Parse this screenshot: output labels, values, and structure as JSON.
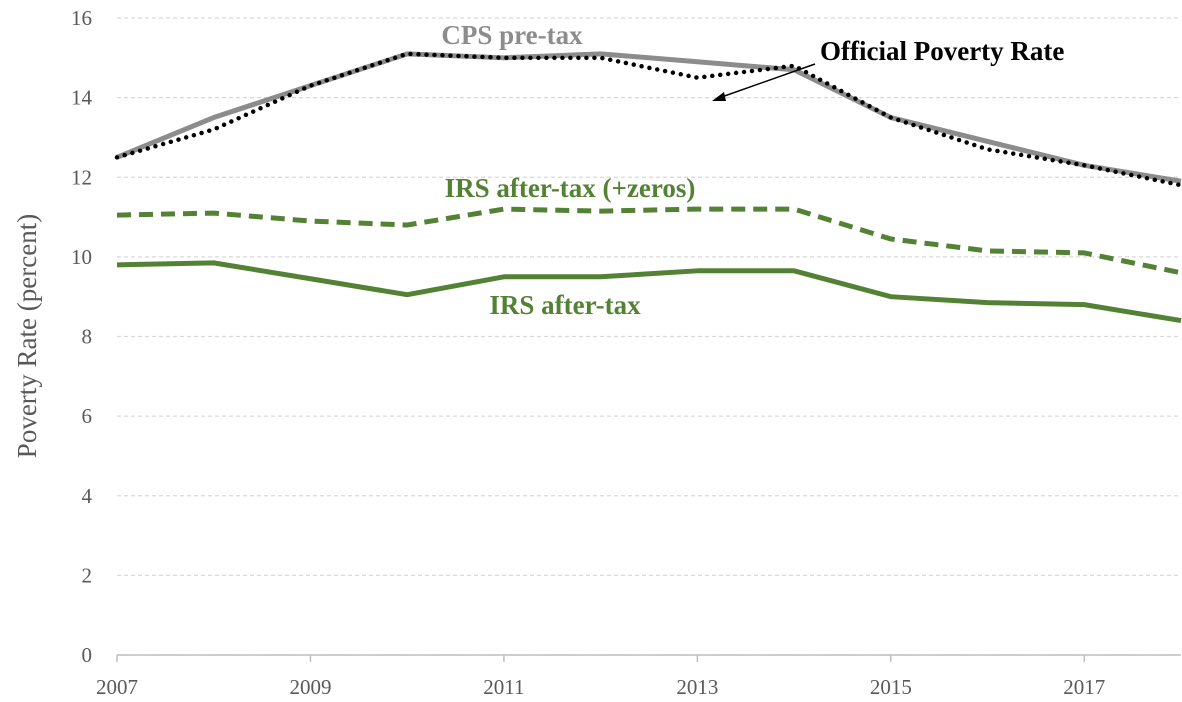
{
  "chart_data": {
    "type": "line",
    "y_label": "Poverty Rate (percent)",
    "x": [
      2007,
      2008,
      2009,
      2010,
      2011,
      2012,
      2013,
      2014,
      2015,
      2016,
      2017,
      2018
    ],
    "series": [
      {
        "name": "CPS pre-tax",
        "color": "#8c8c8c",
        "dash": "solid",
        "values": [
          12.5,
          13.5,
          14.3,
          15.1,
          15.0,
          15.1,
          14.9,
          14.7,
          13.5,
          12.9,
          12.3,
          11.9
        ]
      },
      {
        "name": "Official Poverty Rate",
        "color": "#000000",
        "dash": "dotted",
        "values": [
          12.5,
          13.2,
          14.3,
          15.1,
          15.0,
          15.0,
          14.5,
          14.8,
          13.5,
          12.7,
          12.3,
          11.8
        ]
      },
      {
        "name": "IRS after-tax (+zeros)",
        "color": "#548235",
        "dash": "dashed",
        "values": [
          11.05,
          11.1,
          10.9,
          10.8,
          11.2,
          11.15,
          11.2,
          11.2,
          10.45,
          10.15,
          10.1,
          9.6
        ]
      },
      {
        "name": "IRS after-tax",
        "color": "#548235",
        "dash": "solid",
        "values": [
          9.8,
          9.85,
          9.45,
          9.05,
          9.5,
          9.5,
          9.65,
          9.65,
          9.0,
          8.85,
          8.8,
          8.4
        ]
      }
    ],
    "xlim": [
      2007,
      2018
    ],
    "xticks": [
      2007,
      2009,
      2011,
      2013,
      2015,
      2017
    ],
    "ylim": [
      0,
      16
    ],
    "yticks": [
      0,
      2,
      4,
      6,
      8,
      10,
      12,
      14,
      16
    ],
    "grid": true
  }
}
